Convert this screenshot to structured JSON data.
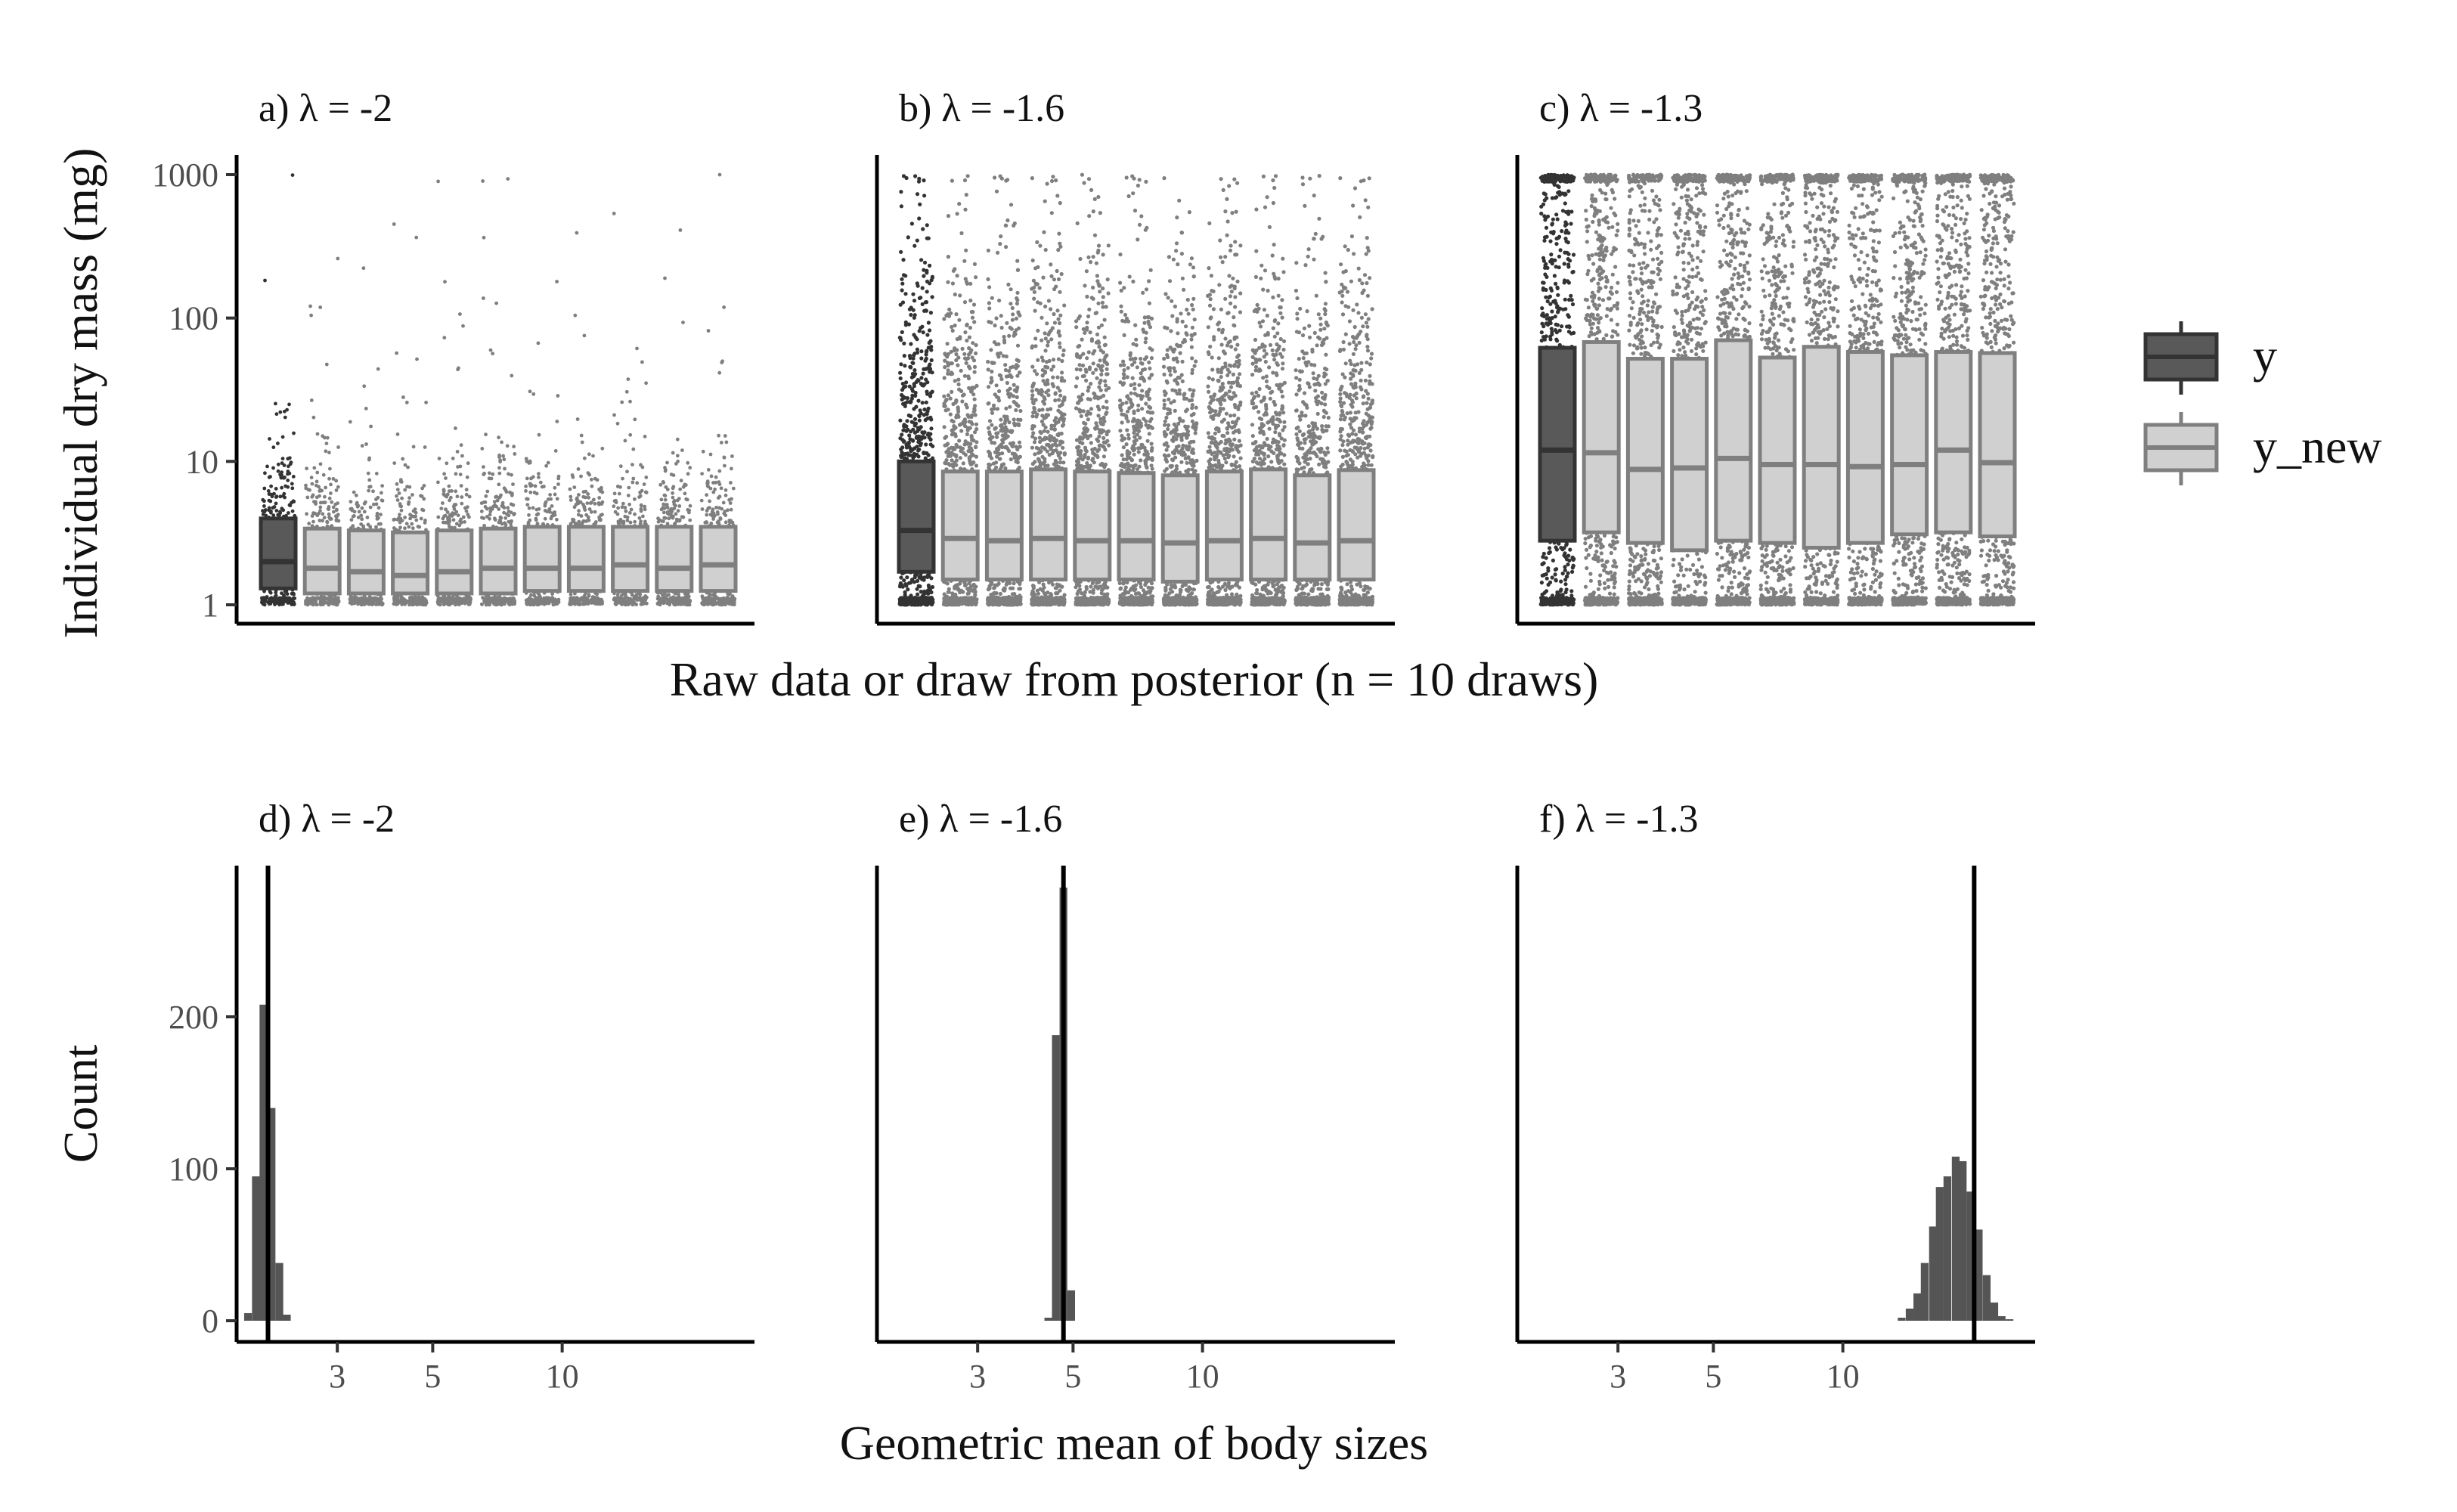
{
  "figure": {
    "top_xlabel": "Raw data or draw from posterior (n = 10 draws)",
    "top_ylabel": "Individual dry mass (mg)",
    "bottom_xlabel": "Geometric mean of body sizes",
    "bottom_ylabel": "Count"
  },
  "legend": {
    "items": [
      {
        "label": "y",
        "fill": "#595959",
        "stroke": "#333333"
      },
      {
        "label": "y_new",
        "fill": "#d0d0d0",
        "stroke": "#7f7f7f"
      }
    ]
  },
  "colors": {
    "observed_fill": "#595959",
    "observed_stroke": "#333333",
    "observed_points": "#333333",
    "draw_fill": "#d0d0d0",
    "draw_stroke": "#7f7f7f",
    "draw_points": "#7f7f7f",
    "axis": "#000000",
    "hist_bar": "#555555",
    "ref_line": "#000000"
  },
  "chart_data": [
    {
      "panel": "a",
      "type": "box",
      "title": "a) λ = -2",
      "y_scale": "log10",
      "ylim": [
        1,
        1000
      ],
      "y_ticks": [
        1,
        10,
        100,
        1000
      ],
      "y_tick_labels": [
        "1",
        "10",
        "100",
        "1000"
      ],
      "point_max": 1000,
      "series": [
        {
          "name": "y",
          "q1": 1.3,
          "median": 2.0,
          "q3": 4.0
        },
        {
          "name": "y_new",
          "q1": 1.2,
          "median": 1.8,
          "q3": 3.4
        },
        {
          "name": "y_new",
          "q1": 1.2,
          "median": 1.7,
          "q3": 3.3
        },
        {
          "name": "y_new",
          "q1": 1.2,
          "median": 1.6,
          "q3": 3.2
        },
        {
          "name": "y_new",
          "q1": 1.2,
          "median": 1.7,
          "q3": 3.3
        },
        {
          "name": "y_new",
          "q1": 1.2,
          "median": 1.8,
          "q3": 3.4
        },
        {
          "name": "y_new",
          "q1": 1.25,
          "median": 1.8,
          "q3": 3.5
        },
        {
          "name": "y_new",
          "q1": 1.25,
          "median": 1.8,
          "q3": 3.5
        },
        {
          "name": "y_new",
          "q1": 1.25,
          "median": 1.9,
          "q3": 3.5
        },
        {
          "name": "y_new",
          "q1": 1.25,
          "median": 1.8,
          "q3": 3.5
        },
        {
          "name": "y_new",
          "q1": 1.25,
          "median": 1.9,
          "q3": 3.5
        }
      ]
    },
    {
      "panel": "b",
      "type": "box",
      "title": "b) λ = -1.6",
      "y_scale": "log10",
      "ylim": [
        1,
        1000
      ],
      "y_ticks": [
        1,
        10,
        100,
        1000
      ],
      "point_max": 1000,
      "series": [
        {
          "name": "y",
          "q1": 1.7,
          "median": 3.3,
          "q3": 10
        },
        {
          "name": "y_new",
          "q1": 1.5,
          "median": 2.9,
          "q3": 8.5
        },
        {
          "name": "y_new",
          "q1": 1.5,
          "median": 2.8,
          "q3": 8.5
        },
        {
          "name": "y_new",
          "q1": 1.5,
          "median": 2.9,
          "q3": 8.8
        },
        {
          "name": "y_new",
          "q1": 1.5,
          "median": 2.8,
          "q3": 8.5
        },
        {
          "name": "y_new",
          "q1": 1.5,
          "median": 2.8,
          "q3": 8.3
        },
        {
          "name": "y_new",
          "q1": 1.45,
          "median": 2.7,
          "q3": 8.0
        },
        {
          "name": "y_new",
          "q1": 1.5,
          "median": 2.8,
          "q3": 8.5
        },
        {
          "name": "y_new",
          "q1": 1.5,
          "median": 2.9,
          "q3": 8.8
        },
        {
          "name": "y_new",
          "q1": 1.5,
          "median": 2.7,
          "q3": 8.0
        },
        {
          "name": "y_new",
          "q1": 1.5,
          "median": 2.8,
          "q3": 8.7
        }
      ]
    },
    {
      "panel": "c",
      "type": "box",
      "title": "c) λ = -1.3",
      "y_scale": "log10",
      "ylim": [
        1,
        1000
      ],
      "y_ticks": [
        1,
        10,
        100,
        1000
      ],
      "point_max": 1000,
      "series": [
        {
          "name": "y",
          "q1": 2.8,
          "median": 12,
          "q3": 62
        },
        {
          "name": "y_new",
          "q1": 3.2,
          "median": 11.5,
          "q3": 68
        },
        {
          "name": "y_new",
          "q1": 2.7,
          "median": 8.8,
          "q3": 52
        },
        {
          "name": "y_new",
          "q1": 2.4,
          "median": 9.0,
          "q3": 52
        },
        {
          "name": "y_new",
          "q1": 2.8,
          "median": 10.5,
          "q3": 70
        },
        {
          "name": "y_new",
          "q1": 2.7,
          "median": 9.5,
          "q3": 53
        },
        {
          "name": "y_new",
          "q1": 2.5,
          "median": 9.5,
          "q3": 63
        },
        {
          "name": "y_new",
          "q1": 2.7,
          "median": 9.2,
          "q3": 58
        },
        {
          "name": "y_new",
          "q1": 3.1,
          "median": 9.5,
          "q3": 55
        },
        {
          "name": "y_new",
          "q1": 3.2,
          "median": 12,
          "q3": 58
        },
        {
          "name": "y_new",
          "q1": 3.0,
          "median": 9.8,
          "q3": 57
        }
      ]
    },
    {
      "panel": "d",
      "type": "histogram",
      "title": "d) λ = -2",
      "x_scale": "log10",
      "xlim": [
        1.75,
        28
      ],
      "x_ticks": [
        3,
        5,
        10
      ],
      "x_tick_labels": [
        "3",
        "5",
        "10"
      ],
      "ylim": [
        0,
        310
      ],
      "y_ticks": [
        0,
        100,
        200
      ],
      "y_tick_labels": [
        "0",
        "100",
        "200"
      ],
      "observed_value": 2.07,
      "bin_width_log10": 0.018,
      "bins": [
        {
          "x": 1.86,
          "count": 5
        },
        {
          "x": 1.94,
          "count": 95
        },
        {
          "x": 2.02,
          "count": 208
        },
        {
          "x": 2.11,
          "count": 140
        },
        {
          "x": 2.2,
          "count": 38
        },
        {
          "x": 2.29,
          "count": 4
        }
      ]
    },
    {
      "panel": "e",
      "type": "histogram",
      "title": "e) λ = -1.6",
      "x_scale": "log10",
      "xlim": [
        1.75,
        28
      ],
      "x_ticks": [
        3,
        5,
        10
      ],
      "x_tick_labels": [
        "3",
        "5",
        "10"
      ],
      "ylim": [
        0,
        310
      ],
      "y_ticks": [
        0,
        100,
        200
      ],
      "observed_value": 4.75,
      "bin_width_log10": 0.018,
      "bins": [
        {
          "x": 4.38,
          "count": 2
        },
        {
          "x": 4.56,
          "count": 188
        },
        {
          "x": 4.75,
          "count": 285
        },
        {
          "x": 4.95,
          "count": 20
        }
      ]
    },
    {
      "panel": "f",
      "type": "histogram",
      "title": "f) λ = -1.3",
      "x_scale": "log10",
      "xlim": [
        1.75,
        28
      ],
      "x_ticks": [
        3,
        5,
        10
      ],
      "x_tick_labels": [
        "3",
        "5",
        "10"
      ],
      "ylim": [
        0,
        310
      ],
      "y_ticks": [
        0,
        100,
        200
      ],
      "observed_value": 20.2,
      "bin_width_log10": 0.018,
      "bins": [
        {
          "x": 13.7,
          "count": 2
        },
        {
          "x": 14.3,
          "count": 8
        },
        {
          "x": 14.9,
          "count": 18
        },
        {
          "x": 15.5,
          "count": 38
        },
        {
          "x": 16.2,
          "count": 62
        },
        {
          "x": 16.8,
          "count": 88
        },
        {
          "x": 17.5,
          "count": 95
        },
        {
          "x": 18.3,
          "count": 108
        },
        {
          "x": 19.0,
          "count": 105
        },
        {
          "x": 19.8,
          "count": 85
        },
        {
          "x": 20.7,
          "count": 60
        },
        {
          "x": 21.6,
          "count": 30
        },
        {
          "x": 22.5,
          "count": 12
        },
        {
          "x": 23.4,
          "count": 3
        },
        {
          "x": 24.4,
          "count": 1
        }
      ]
    }
  ]
}
